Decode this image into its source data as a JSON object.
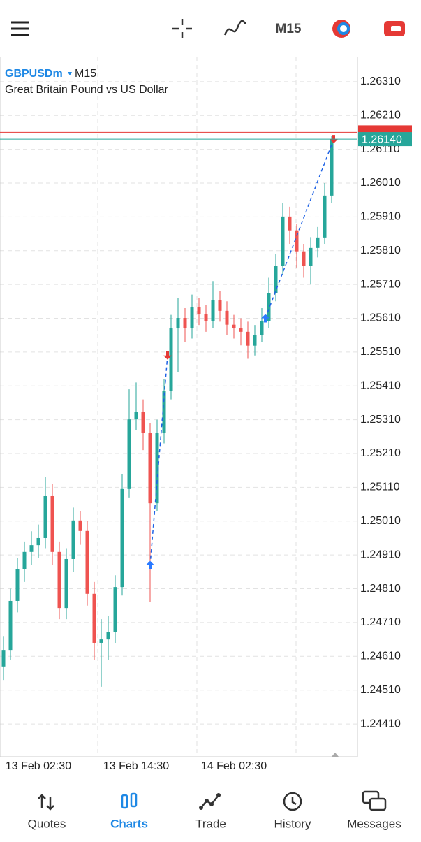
{
  "toolbar": {
    "timeframe": "M15"
  },
  "chart_data": {
    "type": "candlestick",
    "symbol": "GBPUSDm",
    "timeframe": "M15",
    "description": "Great Britain Pound vs US Dollar",
    "ylim": [
      1.24313,
      1.26382
    ],
    "yticks": [
      {
        "value": 1.2631,
        "label": "1.26310"
      },
      {
        "value": 1.2621,
        "label": "1.26210"
      },
      {
        "value": 1.2611,
        "label": "1.26110"
      },
      {
        "value": 1.2601,
        "label": "1.26010"
      },
      {
        "value": 1.2591,
        "label": "1.25910"
      },
      {
        "value": 1.2581,
        "label": "1.25810"
      },
      {
        "value": 1.2571,
        "label": "1.25710"
      },
      {
        "value": 1.2561,
        "label": "1.25610"
      },
      {
        "value": 1.2551,
        "label": "1.25510"
      },
      {
        "value": 1.2541,
        "label": "1.25410"
      },
      {
        "value": 1.2531,
        "label": "1.25310"
      },
      {
        "value": 1.2521,
        "label": "1.25210"
      },
      {
        "value": 1.2511,
        "label": "1.25110"
      },
      {
        "value": 1.2501,
        "label": "1.25010"
      },
      {
        "value": 1.2491,
        "label": "1.24910"
      },
      {
        "value": 1.2481,
        "label": "1.24810"
      },
      {
        "value": 1.2471,
        "label": "1.24710"
      },
      {
        "value": 1.2461,
        "label": "1.24610"
      },
      {
        "value": 1.2451,
        "label": "1.24510"
      },
      {
        "value": 1.2441,
        "label": "1.24410"
      }
    ],
    "x_labels": [
      "13 Feb 02:30",
      "13 Feb 14:30",
      "14 Feb 02:30"
    ],
    "bid": {
      "value": 1.2614,
      "label": "1.26140"
    },
    "ask": 1.2616,
    "up_color": "#26a69a",
    "down_color": "#ef5350",
    "trades": [
      {
        "open": 1.2488,
        "close": 1.255
      },
      {
        "open": 1.2561,
        "close": 1.2614
      }
    ],
    "candles": [
      [
        1.2458,
        1.2467,
        1.2454,
        1.24629
      ],
      [
        1.24629,
        1.2481,
        1.246,
        1.24774
      ],
      [
        1.24774,
        1.249,
        1.2474,
        1.24867
      ],
      [
        1.24867,
        1.2495,
        1.2483,
        1.24919
      ],
      [
        1.24919,
        1.2498,
        1.2488,
        1.24939
      ],
      [
        1.24939,
        1.25,
        1.249,
        1.2496
      ],
      [
        1.2496,
        1.2514,
        1.2493,
        1.25084
      ],
      [
        1.25084,
        1.2512,
        1.2488,
        1.24919
      ],
      [
        1.24919,
        1.2495,
        1.2472,
        1.24753
      ],
      [
        1.24753,
        1.2493,
        1.2472,
        1.24898
      ],
      [
        1.24898,
        1.2505,
        1.2486,
        1.25012
      ],
      [
        1.25012,
        1.2504,
        1.2494,
        1.24981
      ],
      [
        1.24981,
        1.2501,
        1.2476,
        1.24795
      ],
      [
        1.24795,
        1.2483,
        1.246,
        1.2465
      ],
      [
        1.2465,
        1.2472,
        1.2452,
        1.2466
      ],
      [
        1.2466,
        1.2473,
        1.246,
        1.24681
      ],
      [
        1.24681,
        1.2485,
        1.2465,
        1.24815
      ],
      [
        1.24815,
        1.2515,
        1.2479,
        1.25105
      ],
      [
        1.25105,
        1.254,
        1.2508,
        1.25311
      ],
      [
        1.25311,
        1.2542,
        1.2528,
        1.25332
      ],
      [
        1.25332,
        1.2537,
        1.2522,
        1.2527
      ],
      [
        1.2527,
        1.253,
        1.2477,
        1.25063
      ],
      [
        1.25063,
        1.2531,
        1.2504,
        1.2527
      ],
      [
        1.2527,
        1.2543,
        1.2524,
        1.25394
      ],
      [
        1.25394,
        1.2562,
        1.2537,
        1.2558
      ],
      [
        1.2558,
        1.2567,
        1.2545,
        1.25611
      ],
      [
        1.25611,
        1.2564,
        1.2554,
        1.2558
      ],
      [
        1.2558,
        1.2568,
        1.2555,
        1.25642
      ],
      [
        1.25642,
        1.2567,
        1.2559,
        1.25622
      ],
      [
        1.25622,
        1.2565,
        1.2557,
        1.25601
      ],
      [
        1.25601,
        1.2572,
        1.2558,
        1.25663
      ],
      [
        1.25663,
        1.2569,
        1.256,
        1.25632
      ],
      [
        1.25632,
        1.2566,
        1.2556,
        1.25591
      ],
      [
        1.25591,
        1.2562,
        1.2555,
        1.2558
      ],
      [
        1.2558,
        1.2561,
        1.2553,
        1.2557
      ],
      [
        1.2557,
        1.256,
        1.2549,
        1.25529
      ],
      [
        1.25529,
        1.2559,
        1.255,
        1.2556
      ],
      [
        1.2556,
        1.2564,
        1.2554,
        1.25601
      ],
      [
        1.25601,
        1.2573,
        1.2558,
        1.25684
      ],
      [
        1.25684,
        1.258,
        1.2566,
        1.25766
      ],
      [
        1.25766,
        1.2595,
        1.2574,
        1.25911
      ],
      [
        1.25911,
        1.2594,
        1.2583,
        1.2587
      ],
      [
        1.2587,
        1.2589,
        1.2576,
        1.25808
      ],
      [
        1.25808,
        1.2583,
        1.2573,
        1.25766
      ],
      [
        1.25766,
        1.2585,
        1.2571,
        1.25818
      ],
      [
        1.25818,
        1.2588,
        1.2579,
        1.25849
      ],
      [
        1.25849,
        1.2601,
        1.2583,
        1.25973
      ],
      [
        1.25973,
        1.2615,
        1.2595,
        1.26138
      ]
    ]
  },
  "nav": [
    "Quotes",
    "Charts",
    "Trade",
    "History",
    "Messages"
  ]
}
